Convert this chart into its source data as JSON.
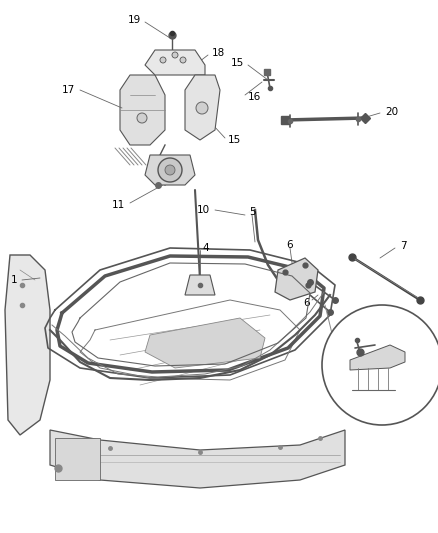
{
  "bg_color": "#ffffff",
  "line_color": "#555555",
  "label_color": "#000000",
  "figsize": [
    4.38,
    5.33
  ],
  "dpi": 100,
  "label_fs": 7.0
}
